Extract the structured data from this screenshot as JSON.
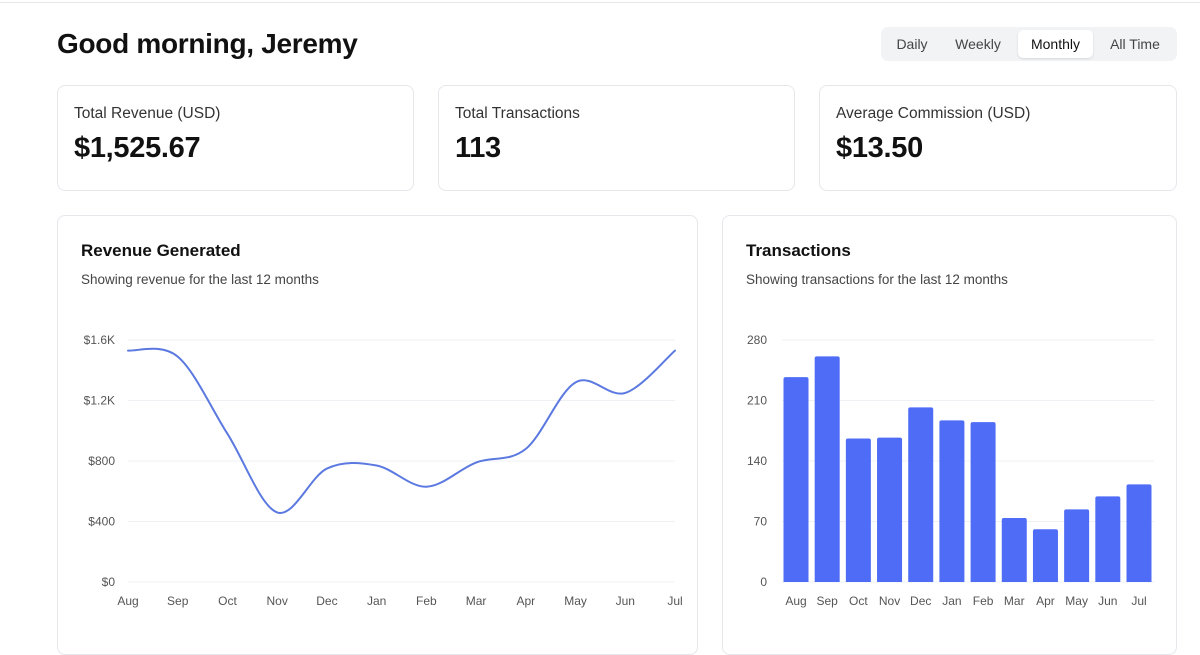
{
  "greeting": "Good morning, Jeremy",
  "period_tabs": [
    {
      "label": "Daily",
      "active": false
    },
    {
      "label": "Weekly",
      "active": false
    },
    {
      "label": "Monthly",
      "active": true
    },
    {
      "label": "All Time",
      "active": false
    }
  ],
  "stats": [
    {
      "label": "Total Revenue (USD)",
      "value": "$1,525.67"
    },
    {
      "label": "Total Transactions",
      "value": "113"
    },
    {
      "label": "Average Commission (USD)",
      "value": "$13.50"
    }
  ],
  "colors": {
    "line": "#5b79e0",
    "bar": "#4f6cf7",
    "grid": "#eef0f3",
    "axis_text": "#555555"
  },
  "revenue_chart": {
    "title": "Revenue Generated",
    "subtitle": "Showing revenue for the last 12 months",
    "chart_data": {
      "type": "line",
      "categories": [
        "Aug",
        "Sep",
        "Oct",
        "Nov",
        "Dec",
        "Jan",
        "Feb",
        "Mar",
        "Apr",
        "May",
        "Jun",
        "Jul"
      ],
      "values": [
        1530,
        1490,
        980,
        460,
        750,
        770,
        630,
        790,
        880,
        1320,
        1250,
        1530
      ],
      "ylim": [
        0,
        1600
      ],
      "yticks": [
        0,
        400,
        800,
        1200,
        1600
      ],
      "ytick_labels": [
        "$0",
        "$400",
        "$800",
        "$1.2K",
        "$1.6K"
      ],
      "grid": true
    }
  },
  "transactions_chart": {
    "title": "Transactions",
    "subtitle": "Showing transactions for the last 12 months",
    "chart_data": {
      "type": "bar",
      "categories": [
        "Aug",
        "Sep",
        "Oct",
        "Nov",
        "Dec",
        "Jan",
        "Feb",
        "Mar",
        "Apr",
        "May",
        "Jun",
        "Jul"
      ],
      "values": [
        237,
        261,
        166,
        167,
        202,
        187,
        185,
        74,
        61,
        84,
        99,
        113
      ],
      "ylim": [
        0,
        280
      ],
      "yticks": [
        0,
        70,
        140,
        210,
        280
      ],
      "ytick_labels": [
        "0",
        "70",
        "140",
        "210",
        "280"
      ],
      "grid": true
    }
  }
}
